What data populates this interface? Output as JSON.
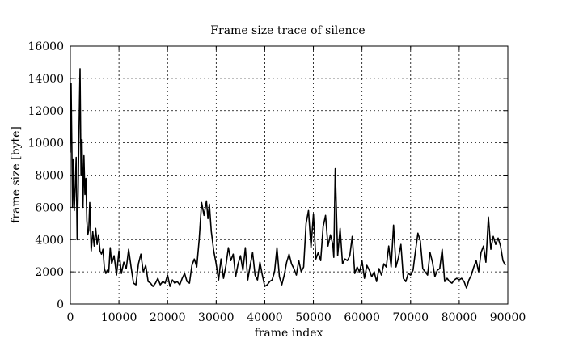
{
  "chart_data": {
    "type": "line",
    "title": "Frame size trace of silence",
    "xlabel": "frame index",
    "ylabel": "frame size [byte]",
    "xlim": [
      0,
      90000
    ],
    "ylim": [
      0,
      16000
    ],
    "xticks": [
      0,
      10000,
      20000,
      30000,
      40000,
      50000,
      60000,
      70000,
      80000,
      90000
    ],
    "yticks": [
      0,
      2000,
      4000,
      6000,
      8000,
      10000,
      12000,
      14000,
      16000
    ],
    "xtick_labels": [
      "0",
      "10000",
      "20000",
      "30000",
      "40000",
      "50000",
      "60000",
      "70000",
      "80000",
      "90000"
    ],
    "ytick_labels": [
      "0",
      "2000",
      "4000",
      "6000",
      "8000",
      "10000",
      "12000",
      "14000",
      "16000"
    ],
    "grid": true,
    "line_color": "#000000",
    "series": [
      {
        "x": [
          0,
          150,
          300,
          450,
          600,
          800,
          1000,
          1200,
          1400,
          1600,
          1800,
          2000,
          2200,
          2400,
          2600,
          2800,
          3000,
          3200,
          3400,
          3600,
          3800,
          4000,
          4300,
          4600,
          4900,
          5200,
          5500,
          5800,
          6100,
          6400,
          6700,
          7000,
          7300,
          7600,
          7900,
          8200,
          8500,
          9000,
          9500,
          10000,
          10500,
          11000,
          11500,
          12000,
          12500,
          13000,
          13500,
          14000,
          14500,
          15000,
          15500,
          16000,
          16500,
          17000,
          17500,
          18000,
          18500,
          19000,
          19500,
          20000,
          20500,
          21000,
          21500,
          22000,
          22500,
          23000,
          23500,
          24000,
          24500,
          25000,
          25500,
          26000,
          26500,
          27000,
          27500,
          28000,
          28300,
          28600,
          29000,
          29500,
          30000,
          30500,
          31000,
          31500,
          32000,
          32500,
          33000,
          33500,
          34000,
          34500,
          35000,
          35500,
          36000,
          36500,
          37000,
          37500,
          38000,
          38500,
          39000,
          39500,
          40000,
          40500,
          41000,
          41500,
          42000,
          42500,
          43000,
          43500,
          44000,
          44500,
          45000,
          45500,
          46000,
          46500,
          47000,
          47500,
          48000,
          48500,
          49000,
          49500,
          50000,
          50500,
          51000,
          51500,
          52000,
          52500,
          53000,
          53500,
          54000,
          54200,
          54500,
          55000,
          55500,
          56000,
          56500,
          57000,
          57500,
          58000,
          58500,
          59000,
          59500,
          60000,
          60500,
          61000,
          61500,
          62000,
          62500,
          63000,
          63500,
          64000,
          64500,
          65000,
          65500,
          66000,
          66500,
          67000,
          67500,
          68000,
          68500,
          69000,
          69500,
          70000,
          70500,
          71000,
          71500,
          72000,
          72500,
          73000,
          73500,
          74000,
          74500,
          75000,
          75500,
          76000,
          76500,
          77000,
          77500,
          78000,
          78500,
          79000,
          79500,
          80000,
          80500,
          81000,
          81500,
          82000,
          82500,
          83000,
          83500,
          84000,
          84500,
          85000,
          85500,
          86000,
          86500,
          87000,
          87500,
          88000,
          88500,
          89000,
          89500
        ],
        "values": [
          9400,
          13700,
          10000,
          6000,
          9000,
          5800,
          7200,
          9100,
          4000,
          6800,
          11000,
          14600,
          8000,
          10200,
          6000,
          9200,
          6800,
          7800,
          5200,
          4300,
          4600,
          6300,
          3300,
          4500,
          3600,
          4700,
          3700,
          4300,
          3300,
          3100,
          3400,
          2200,
          1900,
          2100,
          2000,
          3500,
          2500,
          3000,
          1800,
          3300,
          1900,
          2600,
          2200,
          3400,
          2300,
          1300,
          1200,
          2500,
          3100,
          2000,
          2400,
          1400,
          1300,
          1100,
          1300,
          1600,
          1200,
          1400,
          1300,
          1800,
          1100,
          1500,
          1300,
          1400,
          1200,
          1600,
          1900,
          1400,
          1300,
          2400,
          2800,
          2300,
          4000,
          6300,
          5500,
          6400,
          5300,
          6200,
          4500,
          3300,
          2500,
          1500,
          2800,
          1600,
          2400,
          3500,
          2700,
          3100,
          1700,
          2500,
          3000,
          2100,
          3500,
          1500,
          2400,
          3200,
          1800,
          1500,
          2600,
          1800,
          1100,
          1200,
          1400,
          1500,
          2000,
          3500,
          1700,
          1200,
          1800,
          2600,
          3100,
          2500,
          2200,
          1800,
          2700,
          2000,
          2300,
          5000,
          5800,
          3500,
          5600,
          2800,
          3200,
          2700,
          4800,
          5500,
          3600,
          4300,
          3700,
          2900,
          8400,
          3000,
          4700,
          2500,
          2800,
          2700,
          3000,
          4200,
          1900,
          2300,
          2000,
          2700,
          1600,
          2400,
          2100,
          1700,
          2000,
          1400,
          2200,
          1800,
          2500,
          2300,
          3600,
          2300,
          4900,
          2300,
          2900,
          3700,
          1600,
          1400,
          1900,
          1800,
          2100,
          3300,
          4400,
          3900,
          2200,
          2000,
          1800,
          3200,
          2600,
          1700,
          2100,
          2200,
          3400,
          1400,
          1600,
          1400,
          1300,
          1500,
          1600,
          1500,
          1600,
          1400,
          1000,
          1500,
          1800,
          2300,
          2700,
          2000,
          3200,
          3600,
          2600,
          5400,
          3400,
          4200,
          3700,
          4100,
          3600,
          2700,
          2400
        ]
      }
    ]
  }
}
